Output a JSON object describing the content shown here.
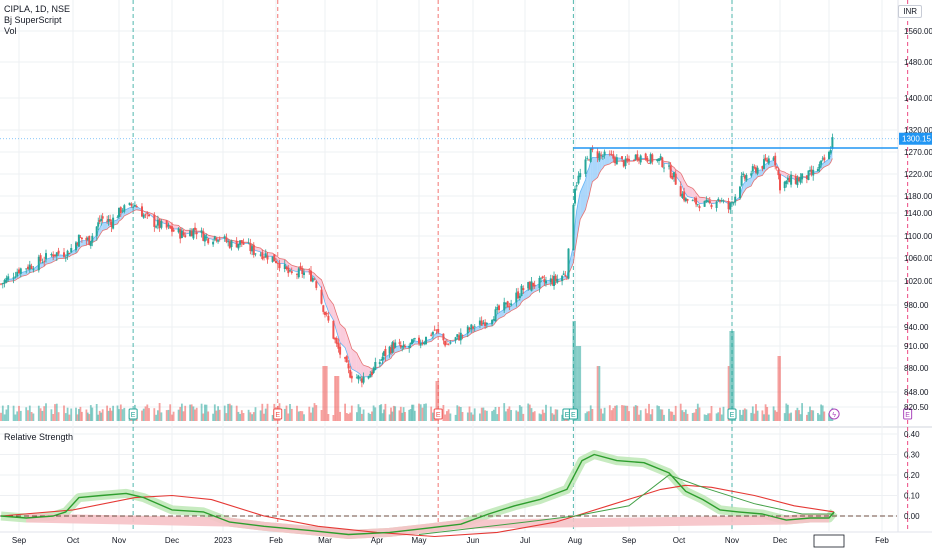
{
  "header": {
    "symbol_line": "CIPLA, 1D, NSE",
    "indicator_1": "Bj SuperScript",
    "indicator_2": "Vol",
    "currency": "INR"
  },
  "colors": {
    "up": "#26a69a",
    "down": "#ef5350",
    "ema_up_fill": "#90caf9",
    "ema_down_fill": "#f8bbd0",
    "resistance": "#2196f3",
    "rs_line": "#2e9e2e",
    "rs_glow_up": "#b9e6b0",
    "rs_glow_down": "#f6c2c6",
    "rs_ma": "#e53935",
    "price_tag": "#2196f3",
    "grid": "#eef0f3"
  },
  "chart_data": [
    {
      "type": "candlestick",
      "x_ticks": [
        "Sep",
        "Oct",
        "Nov",
        "Dec",
        "2023",
        "Feb",
        "Mar",
        "Apr",
        "May",
        "Jun",
        "Jul",
        "Aug",
        "Sep",
        "Oct",
        "Nov",
        "Dec",
        "2024",
        "Feb"
      ],
      "y_ticks": [
        820.5,
        848,
        880,
        910,
        940,
        980,
        1020,
        1060,
        1100,
        1140,
        1180,
        1220,
        1270,
        1320,
        1400,
        1480,
        1560
      ],
      "y_tick_labels": [
        "820.50",
        "848.00",
        "880.00",
        "910.00",
        "940.00",
        "980.00",
        "1020.00",
        "1060.00",
        "1100.00",
        "1140.00",
        "1180.00",
        "1220.00",
        "1270.00",
        "1320.00",
        "1400.00",
        "1480.00",
        "1560.00"
      ],
      "last_price": 1300.15,
      "last_price_label": "1300.15",
      "resistance_level": 1279,
      "close_path": [
        [
          "2022-08-22",
          1015
        ],
        [
          "2022-09-01",
          1040
        ],
        [
          "2022-09-10",
          1050
        ],
        [
          "2022-09-20",
          1068
        ],
        [
          "2022-09-28",
          1070
        ],
        [
          "2022-10-05",
          1096
        ],
        [
          "2022-10-12",
          1092
        ],
        [
          "2022-10-20",
          1130
        ],
        [
          "2022-10-27",
          1125
        ],
        [
          "2022-11-03",
          1150
        ],
        [
          "2022-11-10",
          1160
        ],
        [
          "2022-11-16",
          1132
        ],
        [
          "2022-11-24",
          1118
        ],
        [
          "2022-12-01",
          1110
        ],
        [
          "2022-12-08",
          1102
        ],
        [
          "2022-12-15",
          1112
        ],
        [
          "2022-12-22",
          1096
        ],
        [
          "2022-12-29",
          1100
        ],
        [
          "2023-01-05",
          1086
        ],
        [
          "2023-01-12",
          1088
        ],
        [
          "2023-01-19",
          1072
        ],
        [
          "2023-01-26",
          1066
        ],
        [
          "2023-02-02",
          1055
        ],
        [
          "2023-02-09",
          1030
        ],
        [
          "2023-02-16",
          1035
        ],
        [
          "2023-02-23",
          1025
        ],
        [
          "2023-03-01",
          965
        ],
        [
          "2023-03-08",
          910
        ],
        [
          "2023-03-15",
          875
        ],
        [
          "2023-03-22",
          865
        ],
        [
          "2023-03-29",
          875
        ],
        [
          "2023-04-06",
          898
        ],
        [
          "2023-04-13",
          912
        ],
        [
          "2023-04-20",
          905
        ],
        [
          "2023-04-27",
          914
        ],
        [
          "2023-05-04",
          920
        ],
        [
          "2023-05-10",
          935
        ],
        [
          "2023-05-17",
          912
        ],
        [
          "2023-05-24",
          925
        ],
        [
          "2023-06-01",
          940
        ],
        [
          "2023-06-08",
          950
        ],
        [
          "2023-06-15",
          968
        ],
        [
          "2023-06-22",
          982
        ],
        [
          "2023-06-29",
          1005
        ],
        [
          "2023-07-06",
          1015
        ],
        [
          "2023-07-13",
          1018
        ],
        [
          "2023-07-20",
          1022
        ],
        [
          "2023-07-27",
          1035
        ],
        [
          "2023-08-01",
          1200
        ],
        [
          "2023-08-05",
          1225
        ],
        [
          "2023-08-10",
          1270
        ],
        [
          "2023-08-16",
          1262
        ],
        [
          "2023-08-23",
          1256
        ],
        [
          "2023-08-30",
          1244
        ],
        [
          "2023-09-06",
          1262
        ],
        [
          "2023-09-13",
          1255
        ],
        [
          "2023-09-20",
          1250
        ],
        [
          "2023-09-27",
          1220
        ],
        [
          "2023-10-05",
          1170
        ],
        [
          "2023-10-12",
          1162
        ],
        [
          "2023-10-19",
          1160
        ],
        [
          "2023-10-24",
          1175
        ],
        [
          "2023-10-30",
          1150
        ],
        [
          "2023-11-06",
          1205
        ],
        [
          "2023-11-13",
          1225
        ],
        [
          "2023-11-20",
          1240
        ],
        [
          "2023-11-27",
          1265
        ],
        [
          "2023-12-01",
          1200
        ],
        [
          "2023-12-08",
          1208
        ],
        [
          "2023-12-15",
          1212
        ],
        [
          "2023-12-22",
          1222
        ],
        [
          "2023-12-28",
          1246
        ],
        [
          "2024-01-01",
          1264
        ],
        [
          "2024-01-03",
          1300
        ]
      ],
      "earnings_markers": [
        "2022-11-09",
        "2023-02-02",
        "2023-05-12",
        "2023-07-27",
        "2023-07-31",
        "2023-11-01",
        "2024-01-04",
        "2024-02-16"
      ],
      "earnings_marker_label": "E",
      "dividend_marker_date": "2024-01-04",
      "volume_spikes": [
        [
          "2023-03-01",
          0.55
        ],
        [
          "2023-03-08",
          0.45
        ],
        [
          "2023-05-12",
          0.4
        ],
        [
          "2023-07-31",
          1.0
        ],
        [
          "2023-08-03",
          0.75
        ],
        [
          "2023-08-14",
          0.55
        ],
        [
          "2023-10-31",
          0.55
        ],
        [
          "2023-11-01",
          0.9
        ],
        [
          "2023-12-01",
          0.65
        ]
      ]
    },
    {
      "type": "line",
      "title": "Relative Strength",
      "y_ticks": [
        0.0,
        0.1,
        0.2,
        0.3,
        0.4
      ],
      "y_tick_labels": [
        "0.00",
        "0.10",
        "0.20",
        "0.30",
        "0.40"
      ],
      "series": [
        {
          "role": "rs",
          "points": [
            [
              "2022-08-22",
              0.0
            ],
            [
              "2022-09-05",
              -0.01
            ],
            [
              "2022-09-20",
              0.0
            ],
            [
              "2022-09-27",
              0.02
            ],
            [
              "2022-10-05",
              0.09
            ],
            [
              "2022-10-20",
              0.1
            ],
            [
              "2022-11-05",
              0.11
            ],
            [
              "2022-11-15",
              0.09
            ],
            [
              "2022-12-01",
              0.03
            ],
            [
              "2022-12-20",
              0.02
            ],
            [
              "2023-01-05",
              -0.03
            ],
            [
              "2023-01-25",
              -0.05
            ],
            [
              "2023-02-20",
              -0.07
            ],
            [
              "2023-03-15",
              -0.09
            ],
            [
              "2023-04-10",
              -0.08
            ],
            [
              "2023-05-05",
              -0.06
            ],
            [
              "2023-05-25",
              -0.04
            ],
            [
              "2023-06-10",
              0.01
            ],
            [
              "2023-06-25",
              0.05
            ],
            [
              "2023-07-10",
              0.08
            ],
            [
              "2023-07-27",
              0.13
            ],
            [
              "2023-08-05",
              0.27
            ],
            [
              "2023-08-12",
              0.3
            ],
            [
              "2023-08-25",
              0.27
            ],
            [
              "2023-09-10",
              0.26
            ],
            [
              "2023-09-25",
              0.21
            ],
            [
              "2023-10-05",
              0.12
            ],
            [
              "2023-10-15",
              0.08
            ],
            [
              "2023-10-25",
              0.03
            ],
            [
              "2023-11-05",
              0.02
            ],
            [
              "2023-11-20",
              0.01
            ],
            [
              "2023-12-05",
              -0.02
            ],
            [
              "2023-12-20",
              -0.01
            ],
            [
              "2024-01-01",
              -0.01
            ],
            [
              "2024-01-04",
              0.02
            ]
          ]
        },
        {
          "role": "rs-ma",
          "points": [
            [
              "2022-08-22",
              0.0
            ],
            [
              "2022-10-01",
              0.03
            ],
            [
              "2022-11-10",
              0.09
            ],
            [
              "2022-12-01",
              0.1
            ],
            [
              "2022-12-25",
              0.08
            ],
            [
              "2023-01-25",
              0.0
            ],
            [
              "2023-02-25",
              -0.05
            ],
            [
              "2023-04-01",
              -0.08
            ],
            [
              "2023-05-10",
              -0.1
            ],
            [
              "2023-06-15",
              -0.08
            ],
            [
              "2023-07-20",
              -0.03
            ],
            [
              "2023-08-20",
              0.05
            ],
            [
              "2023-09-20",
              0.13
            ],
            [
              "2023-10-05",
              0.15
            ],
            [
              "2023-10-20",
              0.14
            ],
            [
              "2023-11-15",
              0.1
            ],
            [
              "2023-12-10",
              0.05
            ],
            [
              "2024-01-04",
              0.02
            ]
          ]
        },
        {
          "role": "rs-signal",
          "points": [
            [
              "2023-05-01",
              -0.09
            ],
            [
              "2023-06-01",
              -0.06
            ],
            [
              "2023-07-01",
              -0.03
            ],
            [
              "2023-08-01",
              0.0
            ],
            [
              "2023-09-01",
              0.05
            ],
            [
              "2023-09-25",
              0.2
            ],
            [
              "2023-10-15",
              0.14
            ],
            [
              "2023-11-15",
              0.06
            ],
            [
              "2023-12-15",
              0.01
            ],
            [
              "2024-01-04",
              0.01
            ]
          ]
        }
      ],
      "zero_line": 0.0
    }
  ]
}
